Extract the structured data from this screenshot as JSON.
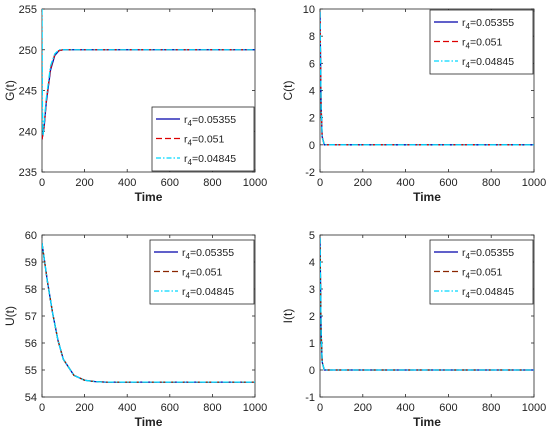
{
  "chart_data": [
    {
      "type": "line",
      "xlabel": "Time",
      "ylabel": "G(t)",
      "xlim": [
        0,
        1000
      ],
      "ylim": [
        235,
        255
      ],
      "xticks": [
        "0",
        "200",
        "400",
        "600",
        "800",
        "1000"
      ],
      "yticks": [
        "235",
        "240",
        "245",
        "250",
        "255"
      ],
      "grid": false,
      "legend_position": "bottom-right",
      "series": [
        {
          "legend": {
            "base": "r",
            "sub": "4",
            "value": "=0.05355"
          },
          "color": "#0000aa",
          "dash": "solid",
          "x": [
            0,
            10,
            20,
            40,
            60,
            80,
            100,
            150,
            200,
            300,
            400,
            500,
            600,
            700,
            800,
            900,
            1000
          ],
          "y": [
            239,
            240.5,
            243.5,
            247.5,
            249.3,
            249.9,
            250,
            250,
            250,
            250,
            250,
            250,
            250,
            250,
            250,
            250,
            250
          ]
        },
        {
          "legend": {
            "base": "r",
            "sub": "4",
            "value": "=0.051"
          },
          "color": "#dd0000",
          "dash": "dashed",
          "x": [
            0,
            10,
            20,
            40,
            60,
            80,
            100,
            150,
            200,
            300,
            400,
            500,
            600,
            700,
            800,
            900,
            1000
          ],
          "y": [
            239,
            240.6,
            243.7,
            247.7,
            249.4,
            249.9,
            250,
            250,
            250,
            250,
            250,
            250,
            250,
            250,
            250,
            250,
            250
          ]
        },
        {
          "legend": {
            "base": "r",
            "sub": "4",
            "value": "=0.04845"
          },
          "color": "#00d8ff",
          "dash": "dashdot",
          "x": [
            0,
            2,
            5,
            10,
            20,
            40,
            60,
            80,
            100,
            150,
            200,
            300,
            400,
            500,
            600,
            700,
            800,
            900,
            1000
          ],
          "y": [
            255,
            243,
            239.5,
            241,
            244,
            248,
            249.5,
            250,
            250,
            250,
            250,
            250,
            250,
            250,
            250,
            250,
            250,
            250,
            250
          ]
        }
      ]
    },
    {
      "type": "line",
      "xlabel": "Time",
      "ylabel": "C(t)",
      "xlim": [
        0,
        1000
      ],
      "ylim": [
        -2,
        10
      ],
      "xticks": [
        "0",
        "200",
        "400",
        "600",
        "800",
        "1000"
      ],
      "yticks": [
        "-2",
        "0",
        "2",
        "4",
        "6",
        "8",
        "10"
      ],
      "grid": false,
      "legend_position": "top-right",
      "series": [
        {
          "legend": {
            "base": "r",
            "sub": "4",
            "value": "=0.05355"
          },
          "color": "#0000aa",
          "dash": "solid",
          "x": [
            0,
            5,
            10,
            20,
            1000
          ],
          "y": [
            9.8,
            3,
            0.6,
            0,
            0
          ]
        },
        {
          "legend": {
            "base": "r",
            "sub": "4",
            "value": "=0.051"
          },
          "color": "#dd0000",
          "dash": "dashed",
          "x": [
            0,
            5,
            10,
            20,
            1000
          ],
          "y": [
            9.8,
            3,
            0.6,
            0,
            0
          ]
        },
        {
          "legend": {
            "base": "r",
            "sub": "4",
            "value": "=0.04845"
          },
          "color": "#00d8ff",
          "dash": "dashdot",
          "x": [
            0,
            5,
            10,
            20,
            1000
          ],
          "y": [
            9.8,
            3,
            0.6,
            0,
            0
          ]
        }
      ]
    },
    {
      "type": "line",
      "xlabel": "Time",
      "ylabel": "U(t)",
      "xlim": [
        0,
        1000
      ],
      "ylim": [
        54,
        60
      ],
      "xticks": [
        "0",
        "200",
        "400",
        "600",
        "800",
        "1000"
      ],
      "yticks": [
        "54",
        "55",
        "56",
        "57",
        "58",
        "59",
        "60"
      ],
      "grid": false,
      "legend_position": "top-right",
      "series": [
        {
          "legend": {
            "base": "r",
            "sub": "4",
            "value": "=0.05355"
          },
          "color": "#0000aa",
          "dash": "solid",
          "x": [
            0,
            25,
            50,
            75,
            100,
            150,
            200,
            250,
            300,
            400,
            500,
            600,
            700,
            800,
            900,
            1000
          ],
          "y": [
            59.7,
            58.3,
            57.1,
            56.1,
            55.4,
            54.8,
            54.62,
            54.57,
            54.55,
            54.55,
            54.55,
            54.55,
            54.55,
            54.55,
            54.55,
            54.55
          ]
        },
        {
          "legend": {
            "base": "r",
            "sub": "4",
            "value": "=0.051"
          },
          "color": "#8b2500",
          "dash": "dashed",
          "x": [
            0,
            25,
            50,
            75,
            100,
            150,
            200,
            250,
            300,
            400,
            500,
            600,
            700,
            800,
            900,
            1000
          ],
          "y": [
            59.7,
            58.3,
            57.1,
            56.1,
            55.4,
            54.8,
            54.62,
            54.57,
            54.55,
            54.55,
            54.55,
            54.55,
            54.55,
            54.55,
            54.55,
            54.55
          ]
        },
        {
          "legend": {
            "base": "r",
            "sub": "4",
            "value": "=0.04845"
          },
          "color": "#00d8ff",
          "dash": "dashdot",
          "x": [
            0,
            25,
            50,
            75,
            100,
            150,
            200,
            250,
            300,
            400,
            500,
            600,
            700,
            800,
            900,
            1000
          ],
          "y": [
            59.7,
            58.3,
            57.1,
            56.1,
            55.4,
            54.8,
            54.62,
            54.57,
            54.55,
            54.55,
            54.55,
            54.55,
            54.55,
            54.55,
            54.55,
            54.55
          ]
        }
      ]
    },
    {
      "type": "line",
      "xlabel": "Time",
      "ylabel": "I(t)",
      "xlim": [
        0,
        1000
      ],
      "ylim": [
        -1,
        5
      ],
      "xticks": [
        "0",
        "200",
        "400",
        "600",
        "800",
        "1000"
      ],
      "yticks": [
        "-1",
        "0",
        "1",
        "2",
        "3",
        "4",
        "5"
      ],
      "grid": false,
      "legend_position": "top-right",
      "series": [
        {
          "legend": {
            "base": "r",
            "sub": "4",
            "value": "=0.05355"
          },
          "color": "#0000aa",
          "dash": "solid",
          "x": [
            0,
            5,
            10,
            20,
            1000
          ],
          "y": [
            4.9,
            1.5,
            0.3,
            0,
            0
          ]
        },
        {
          "legend": {
            "base": "r",
            "sub": "4",
            "value": "=0.051"
          },
          "color": "#8b2500",
          "dash": "dashed",
          "x": [
            0,
            5,
            10,
            20,
            1000
          ],
          "y": [
            4.9,
            1.5,
            0.3,
            0,
            0
          ]
        },
        {
          "legend": {
            "base": "r",
            "sub": "4",
            "value": "=0.04845"
          },
          "color": "#00d8ff",
          "dash": "dashdot",
          "x": [
            0,
            5,
            10,
            20,
            1000
          ],
          "y": [
            4.9,
            1.5,
            0.3,
            0,
            0
          ]
        }
      ]
    }
  ]
}
